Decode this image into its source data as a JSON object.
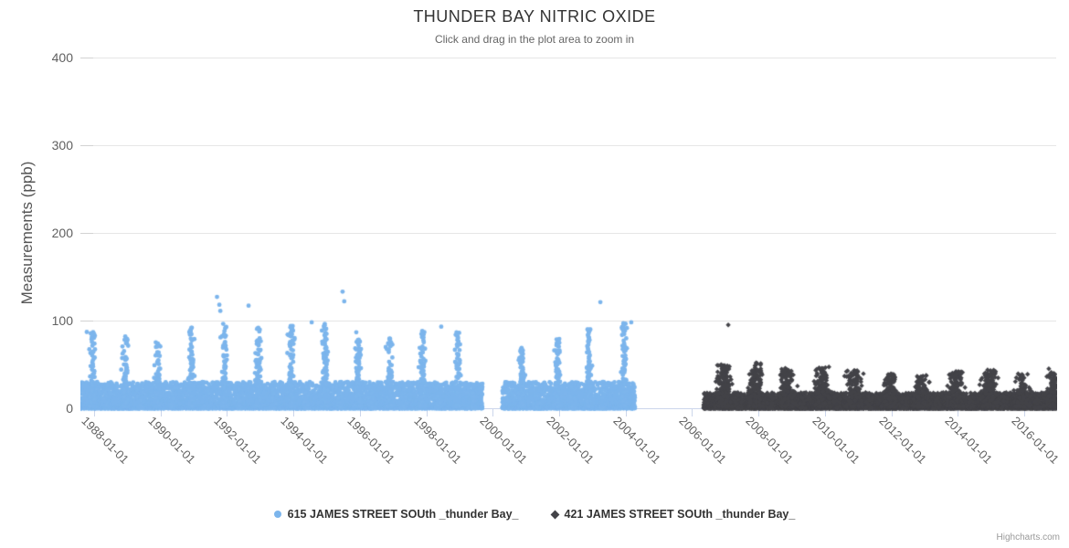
{
  "chart": {
    "credits_label": "Highcharts.com",
    "colors": {
      "grid": "#e6e6e6",
      "axis_line": "#ccd6eb",
      "x_tick": "#ccd6eb",
      "y_tick": "#d2d2d2",
      "title_text": "#333333",
      "subtitle_text": "#666666",
      "axis_label_text": "#606060",
      "legend_text": "#333333",
      "credits_text": "#999999"
    }
  },
  "chart_data": {
    "type": "scatter",
    "title": "THUNDER BAY NITRIC OXIDE",
    "subtitle": "Click and drag in the plot area to zoom in",
    "xlabel": "",
    "ylabel": "Measurements (ppb)",
    "ylim": [
      0,
      400
    ],
    "y_ticks": [
      0,
      100,
      200,
      300,
      400
    ],
    "xlim_years": [
      1987.6,
      2016.97
    ],
    "x_tick_years": [
      1988,
      1990,
      1992,
      1994,
      1996,
      1998,
      2000,
      2002,
      2004,
      2006,
      2008,
      2010,
      2012,
      2014,
      2016
    ],
    "x_tick_labels": [
      "1988-01-01",
      "1990-01-01",
      "1992-01-01",
      "1994-01-01",
      "1996-01-01",
      "1998-01-01",
      "2000-01-01",
      "2002-01-01",
      "2004-01-01",
      "2006-01-01",
      "2008-01-01",
      "2010-01-01",
      "2012-01-01",
      "2014-01-01",
      "2016-01-01"
    ],
    "grid": "horizontal",
    "legend_position": "bottom",
    "series": [
      {
        "name": "615 JAMES STREET SOUth _thunder Bay_",
        "color": "#7cb5ec",
        "marker": "circle",
        "coverage_years": [
          [
            1987.61,
            1999.69
          ],
          [
            2000.29,
            2004.28
          ]
        ],
        "baseline_band_ppb": [
          0,
          30
        ],
        "winter_peak_ppb": {
          "1988": 85,
          "1989": 80,
          "1990": 75,
          "1991": 90,
          "1992": 95,
          "1993": 95,
          "1994": 92,
          "1995": 95,
          "1996": 85,
          "1997": 80,
          "1998": 88,
          "1999": 85,
          "2001": 70,
          "2002": 78,
          "2003": 90,
          "2004": 95
        },
        "outliers": [
          [
            1991.7,
            127
          ],
          [
            1991.77,
            118
          ],
          [
            1991.8,
            111
          ],
          [
            1992.65,
            117
          ],
          [
            1995.48,
            133
          ],
          [
            1995.53,
            122
          ],
          [
            1994.55,
            98
          ],
          [
            1998.45,
            93
          ],
          [
            2003.24,
            121
          ],
          [
            2004.17,
            98
          ],
          [
            1987.78,
            87
          ]
        ]
      },
      {
        "name": "421 JAMES STREET SOUth _thunder Bay_",
        "color": "#434348",
        "marker": "diamond",
        "coverage_years": [
          [
            2006.35,
            2016.97
          ]
        ],
        "baseline_band_ppb": [
          0,
          18
        ],
        "winter_peak_ppb": {
          "2007": 48,
          "2008": 50,
          "2009": 44,
          "2010": 46,
          "2011": 42,
          "2012": 38,
          "2013": 36,
          "2014": 40,
          "2015": 42,
          "2016": 38,
          "2017": 40
        },
        "outliers": [
          [
            2007.09,
            95
          ],
          [
            2016.74,
            45
          ]
        ]
      }
    ]
  }
}
